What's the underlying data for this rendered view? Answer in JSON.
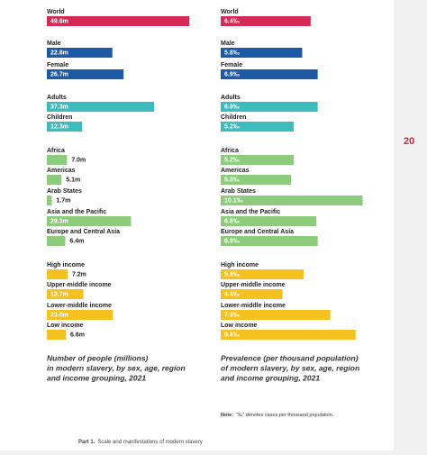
{
  "chart_data": [
    {
      "type": "bar",
      "categories": [
        "World",
        "Male",
        "Female",
        "Adults",
        "Children",
        "Africa",
        "Americas",
        "Arab States",
        "Asia and the Pacific",
        "Europe and Central Asia",
        "High income",
        "Upper-middle income",
        "Lower-middle income",
        "Low income"
      ],
      "values": [
        49.6,
        22.8,
        26.7,
        37.3,
        12.3,
        7.0,
        5.1,
        1.7,
        29.3,
        6.4,
        7.2,
        12.7,
        23.0,
        6.6
      ],
      "value_labels": [
        "49.6m",
        "22.8m",
        "26.7m",
        "37.3m",
        "12.3m",
        "7.0m",
        "5.1m",
        "1.7m",
        "29.3m",
        "6.4m",
        "7.2m",
        "12.7m",
        "23.0m",
        "6.6m"
      ],
      "colors": [
        "#d42a55",
        "#1c5aa6",
        "#1c5aa6",
        "#3cbcbc",
        "#3cbcbc",
        "#8ccc7c",
        "#8ccc7c",
        "#8ccc7c",
        "#8ccc7c",
        "#8ccc7c",
        "#f5c11e",
        "#f5c11e",
        "#f5c11e",
        "#f5c11e"
      ],
      "caption": [
        "Number of people (millions)",
        "in modern slavery, by sex, age, region",
        "and income grouping, 2021"
      ]
    },
    {
      "type": "bar",
      "categories": [
        "World",
        "Male",
        "Female",
        "Adults",
        "Children",
        "Africa",
        "Americas",
        "Arab States",
        "Asia and the Pacific",
        "Europe and Central Asia",
        "High income",
        "Upper-middle income",
        "Lower-middle income",
        "Low income"
      ],
      "values": [
        6.4,
        5.8,
        6.9,
        6.9,
        5.2,
        5.2,
        5.0,
        10.1,
        6.8,
        6.9,
        5.9,
        4.4,
        7.8,
        9.6
      ],
      "value_labels": [
        "6.4‰",
        "5.8‰",
        "6.9‰",
        "6.9‰",
        "5.2‰",
        "5.2‰",
        "5.0‰",
        "10.1‰",
        "6.8‰",
        "6.9‰",
        "5.9‰",
        "4.4‰",
        "7.8‰",
        "9.6‰"
      ],
      "colors": [
        "#d42a55",
        "#1c5aa6",
        "#1c5aa6",
        "#3cbcbc",
        "#3cbcbc",
        "#8ccc7c",
        "#8ccc7c",
        "#8ccc7c",
        "#8ccc7c",
        "#8ccc7c",
        "#f5c11e",
        "#f5c11e",
        "#f5c11e",
        "#f5c11e"
      ],
      "caption": [
        "Prevalence (per thousand population)",
        "of modern slavery, by sex, age, region",
        "and income grouping, 2021"
      ]
    }
  ],
  "note_label": "Note:",
  "note": "“‰” denotes cases per thousand population.",
  "footer_label": "Part 1.",
  "footer": "Scale and manifestations of modern slavery",
  "page_number": "20"
}
